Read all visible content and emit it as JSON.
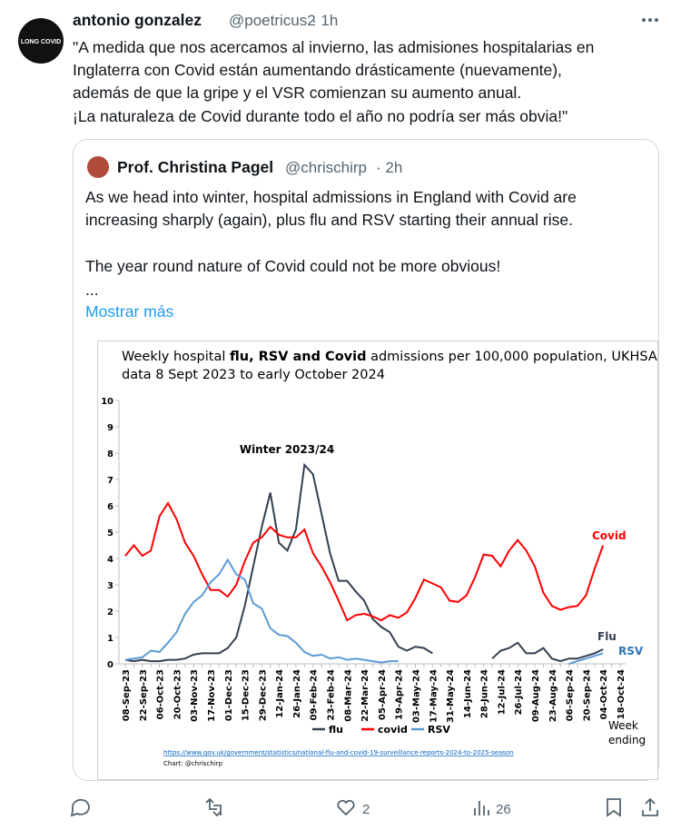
{
  "tweet": {
    "name": "antonio gonzalez",
    "handle": "@poetricus2",
    "time": "· 1h",
    "avatar_text": "LONG COVID",
    "text": [
      "\"A medida que nos acercamos al invierno, las admisiones hospitalarias en",
      "Inglaterra con Covid están aumentando drásticamente (nuevamente),",
      "además de que la gripe y el VSR comienzan su aumento anual.",
      " ¡La naturaleza de Covid durante todo el año no podría ser más obvia!\""
    ],
    "likes": "2",
    "views": "26"
  },
  "quote": {
    "name": "Prof. Christina Pagel",
    "handle": "@chrischirp",
    "time": "· 2h",
    "text": [
      "As we head into winter, hospital admissions in England with Covid are",
      "increasing sharply (again), plus flu and RSV starting their annual rise.",
      "The year round nature of Covid could not be more obvious!",
      "..."
    ],
    "more": "Mostrar más"
  },
  "chart_data": {
    "type": "line",
    "title": [
      "Weekly hospital ",
      "flu, RSV and Covid",
      " admissions per 100,000 population, UKHSA",
      "data 8 Sept 2023  to early October 2024"
    ],
    "x_label": [
      "Week",
      "ending"
    ],
    "annotations": [
      "Winter 2023/24",
      "Covid",
      "Flu",
      "RSV"
    ],
    "source": "https://www.gov.uk/government/statistics/national-flu-and-covid-19-surveillance-reports-2024-to-2025-season",
    "credit": "Chart: @chrischirp",
    "categories": [
      "08-Sep-23",
      null,
      "22-Sep-23",
      null,
      "06-Oct-23",
      null,
      "20-Oct-23",
      null,
      "03-Nov-23",
      null,
      "17-Nov-23",
      null,
      "01-Dec-23",
      null,
      "15-Dec-23",
      null,
      "29-Dec-23",
      null,
      "12-Jan-24",
      null,
      "26-Jan-24",
      null,
      "09-Feb-24",
      null,
      "23-Feb-24",
      null,
      "08-Mar-24",
      null,
      "22-Mar-24",
      null,
      "05-Apr-24",
      null,
      "19-Apr-24",
      null,
      "03-May-24",
      null,
      "17-May-24",
      null,
      "31-May-24",
      null,
      "14-Jun-24",
      null,
      "28-Jun-24",
      null,
      "12-Jul-24",
      null,
      "26-Jul-24",
      null,
      "09-Aug-24",
      null,
      "23-Aug-24",
      null,
      "06-Sep-24",
      null,
      "20-Sep-24",
      null,
      "04-Oct-24",
      null,
      "18-Oct-24"
    ],
    "series": [
      {
        "name": "flu",
        "color": "#333f50",
        "values": [
          0.15,
          0.1,
          0.15,
          0.1,
          0.1,
          0.15,
          0.15,
          0.2,
          0.35,
          0.4,
          0.4,
          0.4,
          0.6,
          1.0,
          2.2,
          3.7,
          5.2,
          6.5,
          4.6,
          4.3,
          5.1,
          7.55,
          7.2,
          5.7,
          4.2,
          3.15,
          3.15,
          2.75,
          2.4,
          1.7,
          1.4,
          1.2,
          0.65,
          0.5,
          0.65,
          0.6,
          0.4,
          null,
          null,
          null,
          null,
          null,
          null,
          0.2,
          0.5,
          0.6,
          0.8,
          0.4,
          0.4,
          0.6,
          0.2,
          0.1,
          0.2,
          0.2,
          0.3,
          0.4,
          0.55,
          null,
          null
        ]
      },
      {
        "name": "covid",
        "color": "#ff0000",
        "values": [
          4.1,
          4.5,
          4.1,
          4.3,
          5.6,
          6.1,
          5.5,
          4.6,
          4.1,
          3.4,
          2.8,
          2.8,
          2.55,
          3.0,
          3.9,
          4.6,
          4.8,
          5.2,
          4.9,
          4.8,
          4.8,
          5.1,
          4.2,
          3.7,
          3.1,
          2.4,
          1.65,
          1.85,
          1.9,
          1.8,
          1.65,
          1.85,
          1.75,
          1.95,
          2.5,
          3.2,
          3.05,
          2.9,
          2.4,
          2.35,
          2.6,
          3.3,
          4.15,
          4.1,
          3.7,
          4.3,
          4.7,
          4.3,
          3.7,
          2.7,
          2.2,
          2.05,
          2.15,
          2.2,
          2.6,
          3.6,
          4.5,
          null,
          null
        ]
      },
      {
        "name": "RSV",
        "color": "#5b9bd5",
        "values": [
          0.15,
          0.2,
          0.25,
          0.5,
          0.45,
          0.8,
          1.2,
          1.9,
          2.35,
          2.6,
          3.1,
          3.4,
          3.95,
          3.4,
          3.2,
          2.3,
          2.1,
          1.35,
          1.1,
          1.05,
          0.8,
          0.45,
          0.3,
          0.35,
          0.2,
          0.25,
          0.15,
          0.2,
          0.15,
          0.1,
          0.05,
          0.1,
          0.1,
          null,
          null,
          null,
          null,
          null,
          null,
          null,
          null,
          null,
          null,
          null,
          null,
          null,
          null,
          null,
          null,
          null,
          null,
          null,
          0.0,
          0.1,
          0.2,
          0.3,
          0.4,
          null,
          null
        ]
      }
    ],
    "ylim": [
      0,
      10
    ],
    "yticks": [
      0,
      1,
      2,
      3,
      4,
      5,
      6,
      7,
      8,
      9,
      10
    ]
  }
}
